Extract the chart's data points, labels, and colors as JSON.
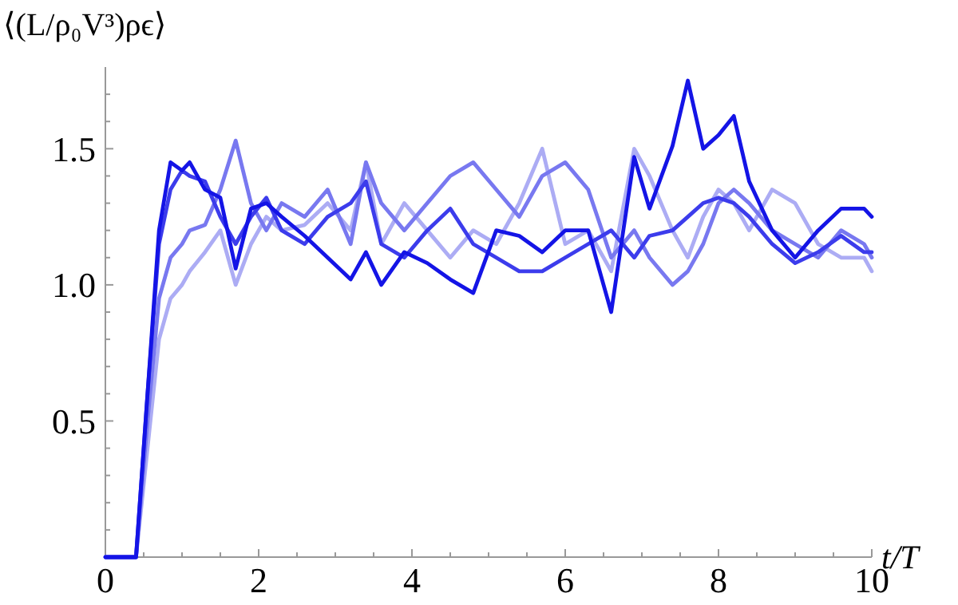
{
  "chart_data": {
    "type": "line",
    "xlabel": "t/T",
    "ylabel": "⟨(L/ρ₀V³)ρϵ⟩",
    "x": [
      0,
      0.4,
      0.55,
      0.7,
      0.85,
      1.0,
      1.1,
      1.3,
      1.5,
      1.7,
      1.9,
      2.1,
      2.3,
      2.6,
      2.9,
      3.2,
      3.4,
      3.6,
      3.9,
      4.2,
      4.5,
      4.8,
      5.1,
      5.4,
      5.7,
      6.0,
      6.3,
      6.6,
      6.9,
      7.1,
      7.4,
      7.6,
      7.8,
      8.0,
      8.2,
      8.4,
      8.7,
      9.0,
      9.3,
      9.6,
      9.9,
      10
    ],
    "series": [
      {
        "color": "#acacf4",
        "values": [
          0,
          0,
          0.4,
          0.8,
          0.95,
          1.0,
          1.05,
          1.12,
          1.2,
          1.0,
          1.15,
          1.25,
          1.2,
          1.22,
          1.3,
          1.2,
          1.45,
          1.15,
          1.3,
          1.2,
          1.1,
          1.2,
          1.15,
          1.3,
          1.5,
          1.15,
          1.2,
          1.05,
          1.5,
          1.4,
          1.2,
          1.1,
          1.25,
          1.35,
          1.3,
          1.2,
          1.35,
          1.3,
          1.15,
          1.1,
          1.1,
          1.05
        ]
      },
      {
        "color": "#7878f0",
        "values": [
          0,
          0,
          0.5,
          0.95,
          1.1,
          1.15,
          1.2,
          1.22,
          1.35,
          1.53,
          1.3,
          1.2,
          1.3,
          1.25,
          1.35,
          1.15,
          1.45,
          1.3,
          1.2,
          1.3,
          1.4,
          1.45,
          1.35,
          1.25,
          1.4,
          1.45,
          1.35,
          1.1,
          1.2,
          1.1,
          1.0,
          1.05,
          1.15,
          1.3,
          1.35,
          1.3,
          1.2,
          1.15,
          1.1,
          1.2,
          1.15,
          1.1
        ]
      },
      {
        "color": "#3c3cec",
        "values": [
          0,
          0,
          0.6,
          1.15,
          1.35,
          1.42,
          1.4,
          1.38,
          1.25,
          1.15,
          1.25,
          1.32,
          1.2,
          1.15,
          1.25,
          1.3,
          1.38,
          1.15,
          1.1,
          1.2,
          1.28,
          1.15,
          1.1,
          1.05,
          1.05,
          1.1,
          1.15,
          1.2,
          1.1,
          1.18,
          1.2,
          1.25,
          1.3,
          1.32,
          1.3,
          1.25,
          1.15,
          1.08,
          1.12,
          1.18,
          1.12,
          1.12
        ]
      },
      {
        "color": "#1414e6",
        "values": [
          0,
          0,
          0.6,
          1.2,
          1.45,
          1.42,
          1.45,
          1.35,
          1.32,
          1.06,
          1.28,
          1.3,
          1.25,
          1.18,
          1.1,
          1.02,
          1.12,
          1.0,
          1.12,
          1.08,
          1.02,
          0.97,
          1.2,
          1.18,
          1.12,
          1.2,
          1.2,
          0.9,
          1.47,
          1.28,
          1.51,
          1.75,
          1.5,
          1.55,
          1.62,
          1.38,
          1.2,
          1.1,
          1.2,
          1.28,
          1.28,
          1.25
        ]
      }
    ],
    "xlim": [
      0,
      10
    ],
    "ylim": [
      0,
      1.8
    ],
    "xticks": [
      0,
      {
        "value": 0.5,
        "label": null
      },
      {
        "value": 1,
        "label": null
      },
      {
        "value": 1.5,
        "label": null
      },
      2,
      {
        "value": 2.5,
        "label": null
      },
      {
        "value": 3,
        "label": null
      },
      {
        "value": 3.5,
        "label": null
      },
      4,
      {
        "value": 4.5,
        "label": null
      },
      {
        "value": 5,
        "label": null
      },
      {
        "value": 5.5,
        "label": null
      },
      6,
      {
        "value": 6.5,
        "label": null
      },
      {
        "value": 7,
        "label": null
      },
      {
        "value": 7.5,
        "label": null
      },
      8,
      {
        "value": 8.5,
        "label": null
      },
      {
        "value": 9,
        "label": null
      },
      {
        "value": 9.5,
        "label": null
      },
      10
    ],
    "yticks": [
      {
        "value": 0.1,
        "label": null
      },
      {
        "value": 0.2,
        "label": null
      },
      {
        "value": 0.3,
        "label": null
      },
      {
        "value": 0.4,
        "label": null
      },
      0.5,
      {
        "value": 0.6,
        "label": null
      },
      {
        "value": 0.7,
        "label": null
      },
      {
        "value": 0.8,
        "label": null
      },
      {
        "value": 0.9,
        "label": null
      },
      {
        "value": 1,
        "label": "1.0"
      },
      {
        "value": 1.1,
        "label": null
      },
      {
        "value": 1.2,
        "label": null
      },
      {
        "value": 1.3,
        "label": null
      },
      {
        "value": 1.4,
        "label": null
      },
      1.5,
      {
        "value": 1.6,
        "label": null
      },
      {
        "value": 1.7,
        "label": null
      }
    ],
    "marker": "none",
    "line_style": "solid"
  }
}
